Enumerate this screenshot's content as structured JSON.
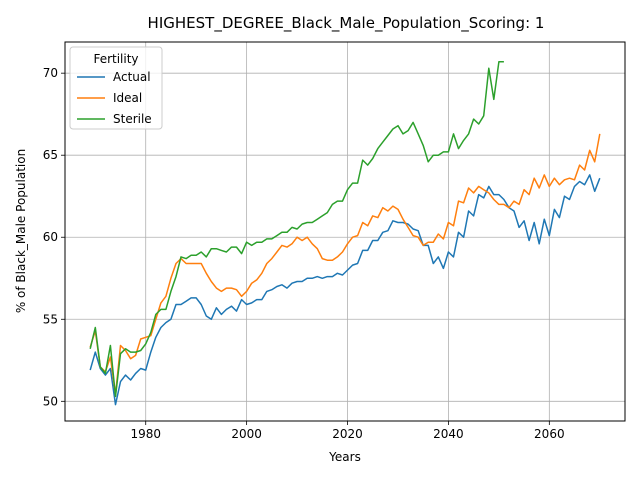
{
  "chart_data": {
    "type": "line",
    "title": "HIGHEST_DEGREE_Black_Male_Population_Scoring: 1",
    "xlabel": "Years",
    "ylabel": "% of Black_Male Population",
    "xlim": [
      1964,
      2075
    ],
    "ylim": [
      48.8,
      71.9
    ],
    "xticks": [
      1980,
      2000,
      2020,
      2040,
      2060
    ],
    "yticks": [
      50,
      55,
      60,
      65,
      70
    ],
    "grid": true,
    "legend": {
      "title": "Fertility",
      "position": "top-left"
    },
    "colors": {
      "Actual": "#1f77b4",
      "Ideal": "#ff7f0e",
      "Sterile": "#2ca02c"
    },
    "series": [
      {
        "name": "Actual",
        "x": [
          1969,
          1970,
          1971,
          1972,
          1973,
          1974,
          1975,
          1976,
          1977,
          1978,
          1979,
          1980,
          1981,
          1982,
          1983,
          1984,
          1985,
          1986,
          1987,
          1988,
          1989,
          1990,
          1991,
          1992,
          1993,
          1994,
          1995,
          1996,
          1997,
          1998,
          1999,
          2000,
          2001,
          2002,
          2003,
          2004,
          2005,
          2006,
          2007,
          2008,
          2009,
          2010,
          2011,
          2012,
          2013,
          2014,
          2015,
          2016,
          2017,
          2018,
          2019,
          2020,
          2021,
          2022,
          2023,
          2024,
          2025,
          2026,
          2027,
          2028,
          2029,
          2030,
          2031,
          2032,
          2033,
          2034,
          2035,
          2036,
          2037,
          2038,
          2039,
          2040,
          2041,
          2042,
          2043,
          2044,
          2045,
          2046,
          2047,
          2048,
          2049,
          2050,
          2051,
          2052,
          2053,
          2054,
          2055,
          2056,
          2057,
          2058,
          2059,
          2060,
          2061,
          2062,
          2063,
          2064,
          2065,
          2066,
          2067,
          2068,
          2069,
          2070
        ],
        "values": [
          51.9,
          53.0,
          52.0,
          51.6,
          52.0,
          49.8,
          51.2,
          51.6,
          51.3,
          51.7,
          52.0,
          51.9,
          53.0,
          53.9,
          54.5,
          54.8,
          55.0,
          55.9,
          55.9,
          56.1,
          56.3,
          56.3,
          55.9,
          55.2,
          55.0,
          55.7,
          55.3,
          55.6,
          55.8,
          55.5,
          56.2,
          55.9,
          56.0,
          56.2,
          56.2,
          56.7,
          56.8,
          57.0,
          57.1,
          56.9,
          57.2,
          57.3,
          57.3,
          57.5,
          57.5,
          57.6,
          57.5,
          57.6,
          57.6,
          57.8,
          57.7,
          58.0,
          58.3,
          58.4,
          59.2,
          59.2,
          59.8,
          59.8,
          60.3,
          60.4,
          61.0,
          60.9,
          60.9,
          60.8,
          60.5,
          60.4,
          59.5,
          59.5,
          58.4,
          58.8,
          58.1,
          59.1,
          58.8,
          60.3,
          60.0,
          61.6,
          61.3,
          62.6,
          62.4,
          63.1,
          62.6,
          62.6,
          62.3,
          61.8,
          61.6,
          60.6,
          61.0,
          59.8,
          60.9,
          59.6,
          61.1,
          60.1,
          61.7,
          61.2,
          62.5,
          62.3,
          63.1,
          63.4,
          63.2,
          63.8,
          62.8,
          63.6
        ]
      },
      {
        "name": "Ideal",
        "x": [
          1969,
          1970,
          1971,
          1972,
          1973,
          1974,
          1975,
          1976,
          1977,
          1978,
          1979,
          1980,
          1981,
          1982,
          1983,
          1984,
          1985,
          1986,
          1987,
          1988,
          1989,
          1990,
          1991,
          1992,
          1993,
          1994,
          1995,
          1996,
          1997,
          1998,
          1999,
          2000,
          2001,
          2002,
          2003,
          2004,
          2005,
          2006,
          2007,
          2008,
          2009,
          2010,
          2011,
          2012,
          2013,
          2014,
          2015,
          2016,
          2017,
          2018,
          2019,
          2020,
          2021,
          2022,
          2023,
          2024,
          2025,
          2026,
          2027,
          2028,
          2029,
          2030,
          2031,
          2032,
          2033,
          2034,
          2035,
          2036,
          2037,
          2038,
          2039,
          2040,
          2041,
          2042,
          2043,
          2044,
          2045,
          2046,
          2047,
          2048,
          2049,
          2050,
          2051,
          2052,
          2053,
          2054,
          2055,
          2056,
          2057,
          2058,
          2059,
          2060,
          2061,
          2062,
          2063,
          2064,
          2065,
          2066,
          2067,
          2068,
          2069,
          2070
        ],
        "values": [
          53.3,
          54.3,
          52.1,
          51.8,
          52.7,
          50.4,
          53.4,
          53.1,
          52.6,
          52.8,
          53.8,
          53.9,
          54.0,
          55.0,
          56.0,
          56.4,
          57.5,
          58.4,
          58.7,
          58.4,
          58.4,
          58.4,
          58.4,
          57.8,
          57.3,
          56.9,
          56.7,
          56.9,
          56.9,
          56.8,
          56.4,
          56.7,
          57.2,
          57.4,
          57.8,
          58.4,
          58.7,
          59.1,
          59.5,
          59.4,
          59.6,
          60.0,
          59.8,
          60.0,
          59.6,
          59.3,
          58.7,
          58.6,
          58.6,
          58.8,
          59.1,
          59.6,
          60.0,
          60.1,
          60.9,
          60.7,
          61.3,
          61.2,
          61.8,
          61.6,
          61.9,
          61.7,
          61.1,
          60.6,
          60.1,
          60.0,
          59.5,
          59.7,
          59.7,
          60.2,
          59.9,
          60.9,
          60.7,
          62.2,
          62.1,
          63.0,
          62.7,
          63.1,
          62.9,
          62.7,
          62.3,
          62.0,
          62.0,
          61.8,
          62.2,
          62.0,
          62.9,
          62.6,
          63.6,
          63.0,
          63.8,
          63.1,
          63.6,
          63.2,
          63.5,
          63.6,
          63.5,
          64.4,
          64.1,
          65.3,
          64.6,
          66.3
        ]
      },
      {
        "name": "Sterile",
        "x": [
          1969,
          1970,
          1971,
          1972,
          1973,
          1974,
          1975,
          1976,
          1977,
          1978,
          1979,
          1980,
          1981,
          1982,
          1983,
          1984,
          1985,
          1986,
          1987,
          1988,
          1989,
          1990,
          1991,
          1992,
          1993,
          1994,
          1995,
          1996,
          1997,
          1998,
          1999,
          2000,
          2001,
          2002,
          2003,
          2004,
          2005,
          2006,
          2007,
          2008,
          2009,
          2010,
          2011,
          2012,
          2013,
          2014,
          2015,
          2016,
          2017,
          2018,
          2019,
          2020,
          2021,
          2022,
          2023,
          2024,
          2025,
          2026,
          2027,
          2028,
          2029,
          2030,
          2031,
          2032,
          2033,
          2034,
          2035,
          2036,
          2037,
          2038,
          2039,
          2040,
          2041,
          2042,
          2043,
          2044,
          2045,
          2046,
          2047,
          2048,
          2049,
          2050,
          2051
        ],
        "values": [
          53.2,
          54.5,
          52.1,
          51.7,
          53.4,
          50.3,
          52.9,
          53.2,
          53.0,
          53.0,
          53.1,
          53.5,
          54.2,
          55.3,
          55.6,
          55.6,
          56.7,
          57.6,
          58.8,
          58.7,
          58.9,
          58.9,
          59.1,
          58.8,
          59.3,
          59.3,
          59.2,
          59.1,
          59.4,
          59.4,
          59.0,
          59.7,
          59.5,
          59.7,
          59.7,
          59.9,
          59.9,
          60.1,
          60.3,
          60.3,
          60.6,
          60.5,
          60.8,
          60.9,
          60.9,
          61.1,
          61.3,
          61.5,
          62.0,
          62.2,
          62.2,
          62.9,
          63.3,
          63.3,
          64.7,
          64.4,
          64.8,
          65.4,
          65.8,
          66.2,
          66.6,
          66.8,
          66.3,
          66.5,
          67.0,
          66.3,
          65.6,
          64.6,
          65.0,
          65.0,
          65.2,
          65.2,
          66.3,
          65.4,
          65.9,
          66.3,
          67.2,
          66.9,
          67.4,
          70.3,
          68.4,
          70.7,
          70.7
        ]
      }
    ]
  }
}
